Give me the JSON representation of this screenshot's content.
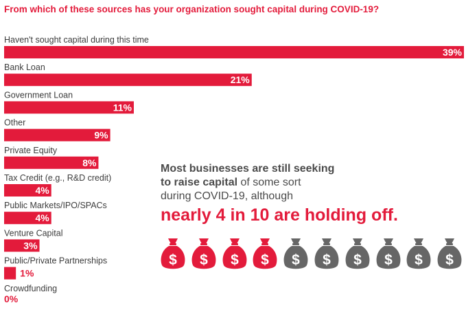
{
  "chart_data": {
    "type": "bar",
    "orientation": "horizontal",
    "title": "From which of these sources has your organization sought capital during COVID-19?",
    "xlim": [
      0,
      39
    ],
    "categories": [
      "Haven't sought capital during this time",
      "Bank Loan",
      "Government Loan",
      "Other",
      "Private Equity",
      "Tax Credit (e.g., R&D credit)",
      "Public Markets/IPO/SPACs",
      "Venture Capital",
      "Public/Private Partnerships",
      "Crowdfunding"
    ],
    "values": [
      39,
      21,
      11,
      9,
      8,
      4,
      4,
      3,
      1,
      0
    ],
    "value_labels": [
      "39%",
      "21%",
      "11%",
      "9%",
      "8%",
      "4%",
      "4%",
      "3%",
      "1%",
      "0%"
    ],
    "bar_color": "#e31b3b"
  },
  "callout": {
    "line1_bold": "Most businesses are still seeking",
    "line2_bold": "to raise capital",
    "line2_rest": " of some sort",
    "line3": "during COVID-19, although",
    "highlight": "nearly 4 in 10 are holding off.",
    "highlight_color": "#e31b3b"
  },
  "money_bags": {
    "total": 10,
    "highlighted": 4,
    "highlight_color": "#e31b3b",
    "base_color": "#666666",
    "icon": "money-bag-icon"
  }
}
